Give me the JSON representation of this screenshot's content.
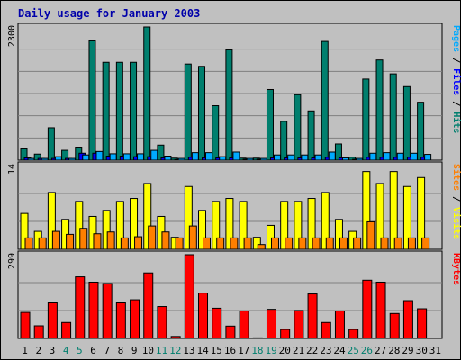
{
  "chart_data": {
    "type": "bar",
    "title": "Daily usage for January 2003",
    "categories": [
      "1",
      "2",
      "3",
      "4",
      "5",
      "6",
      "7",
      "8",
      "9",
      "10",
      "11",
      "12",
      "13",
      "14",
      "15",
      "16",
      "17",
      "18",
      "19",
      "20",
      "21",
      "22",
      "23",
      "24",
      "25",
      "26",
      "27",
      "28",
      "29",
      "30",
      "31"
    ],
    "weekend_days": [
      "4",
      "5",
      "11",
      "12",
      "18",
      "19",
      "25",
      "26"
    ],
    "panels": [
      {
        "name": "top",
        "ymax_label": "2300",
        "ymax": 2300,
        "right_label_parts": [
          {
            "text": "Pages",
            "color": "#00aaff"
          },
          {
            "text": " / ",
            "color": "#000000"
          },
          {
            "text": "Files",
            "color": "#0000ff"
          },
          {
            "text": " / ",
            "color": "#000000"
          },
          {
            "text": "Hits",
            "color": "#007f6e"
          }
        ],
        "series": [
          {
            "name": "Hits",
            "color": "#007f6e",
            "values": [
              195,
              105,
              560,
              170,
              225,
              2060,
              1690,
              1690,
              1690,
              2300,
              260,
              35,
              1660,
              1620,
              940,
              1905,
              35,
              35,
              1220,
              670,
              1130,
              850,
              2050,
              280,
              50,
              1400,
              1730,
              1490,
              1270,
              1000,
              0
            ]
          },
          {
            "name": "Files",
            "color": "#0000ff",
            "values": [
              40,
              30,
              30,
              30,
              120,
              120,
              70,
              70,
              60,
              60,
              40,
              10,
              50,
              40,
              40,
              40,
              15,
              15,
              40,
              40,
              40,
              40,
              50,
              40,
              15,
              50,
              50,
              50,
              50,
              50,
              0
            ]
          },
          {
            "name": "Pages",
            "color": "#00aaff",
            "values": [
              30,
              30,
              60,
              30,
              90,
              150,
              110,
              110,
              110,
              170,
              70,
              30,
              130,
              130,
              60,
              140,
              30,
              30,
              90,
              90,
              90,
              90,
              140,
              40,
              30,
              120,
              130,
              120,
              120,
              100,
              0
            ]
          }
        ]
      },
      {
        "name": "middle",
        "ymax_label": "14",
        "ymax": 14,
        "right_label_parts": [
          {
            "text": "Sites",
            "color": "#ff7f00"
          },
          {
            "text": " / ",
            "color": "#000000"
          },
          {
            "text": "Visits",
            "color": "#ffff00"
          }
        ],
        "series": [
          {
            "name": "Visits",
            "color": "#ffff00",
            "values": [
              6,
              3,
              9.5,
              5,
              8,
              5.5,
              6.5,
              8,
              8.5,
              11,
              5.5,
              2,
              10.5,
              6.5,
              8,
              8.5,
              8,
              2,
              4,
              8,
              8,
              8.5,
              9.5,
              5,
              3,
              13,
              11,
              13,
              10.5,
              12,
              0
            ]
          },
          {
            "name": "Sites",
            "color": "#ff7f00",
            "values": [
              1.9,
              1.9,
              3,
              2.5,
              3.5,
              2.6,
              2.9,
              1.9,
              2.1,
              3.9,
              2.9,
              1.9,
              3.9,
              1.9,
              1.9,
              1.9,
              1.9,
              0.8,
              1.9,
              1.9,
              1.9,
              1.9,
              1.9,
              1.9,
              1.9,
              4.6,
              1.9,
              1.9,
              1.9,
              1.9,
              0
            ]
          }
        ]
      },
      {
        "name": "bottom",
        "ymax_label": "299",
        "ymax": 299,
        "right_label_parts": [
          {
            "text": "KBytes",
            "color": "#ff0000"
          }
        ],
        "series": [
          {
            "name": "KBytes",
            "color": "#ff0000",
            "values": [
              93,
              45,
              127,
              57,
              220,
              201,
              196,
              127,
              138,
              234,
              114,
              7,
              299,
              162,
              108,
              44,
              98,
              2,
              104,
              32,
              100,
              159,
              57,
              98,
              32,
              208,
              201,
              89,
              135,
              106,
              0
            ]
          }
        ]
      }
    ]
  }
}
